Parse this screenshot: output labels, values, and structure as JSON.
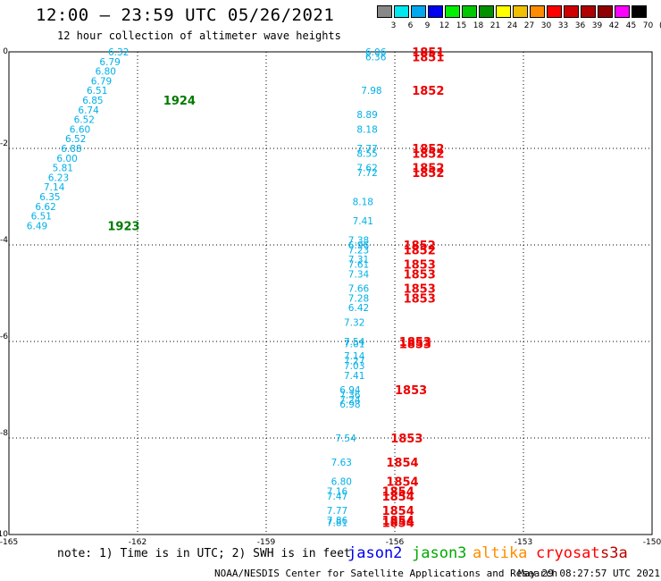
{
  "header": {
    "title": "12:00 – 23:59 UTC 05/26/2021",
    "subtitle": "12 hour collection of altimeter wave heights"
  },
  "colorbar": {
    "labels": [
      "3",
      "6",
      "9",
      "12",
      "15",
      "18",
      "21",
      "24",
      "27",
      "30",
      "33",
      "36",
      "39",
      "42",
      "45",
      "70"
    ],
    "unit": "(ft)",
    "colors": [
      "#888888",
      "#00e8f0",
      "#00a8f0",
      "#0000f0",
      "#00f000",
      "#00c800",
      "#009000",
      "#ffff00",
      "#f0c000",
      "#ff8c00",
      "#ff0000",
      "#d00000",
      "#b00000",
      "#900000",
      "#ff00ff",
      "#000000"
    ]
  },
  "chart_data": {
    "type": "scatter",
    "x_ticks": [
      "-165",
      "-162",
      "-159",
      "-156",
      "-153",
      "-150"
    ],
    "y_ticks": [
      "0",
      "-2",
      "-4",
      "-6",
      "-8",
      "-10"
    ],
    "xlim": [
      -165,
      -150
    ],
    "ylim": [
      -10,
      0
    ],
    "grid": true,
    "grid_style": "dotted",
    "swh_points": [
      {
        "x": -162.2,
        "y": 0.0,
        "label": "6.32"
      },
      {
        "x": -162.4,
        "y": -0.2,
        "label": "6.79"
      },
      {
        "x": -162.5,
        "y": -0.4,
        "label": "6.80"
      },
      {
        "x": -162.6,
        "y": -0.6,
        "label": "6.79"
      },
      {
        "x": -162.7,
        "y": -0.8,
        "label": "6.51"
      },
      {
        "x": -162.8,
        "y": -1.0,
        "label": "6.85"
      },
      {
        "x": -162.9,
        "y": -1.2,
        "label": "6.74"
      },
      {
        "x": -163.0,
        "y": -1.4,
        "label": "6.52"
      },
      {
        "x": -163.1,
        "y": -1.6,
        "label": "6.60"
      },
      {
        "x": -163.2,
        "y": -1.8,
        "label": "6.52"
      },
      {
        "x": -163.3,
        "y": -2.0,
        "label": "6.88"
      },
      {
        "x": -163.4,
        "y": -2.2,
        "label": "6.00"
      },
      {
        "x": -163.5,
        "y": -2.4,
        "label": "5.81"
      },
      {
        "x": -163.6,
        "y": -2.6,
        "label": "6.23"
      },
      {
        "x": -163.7,
        "y": -2.8,
        "label": "7.14"
      },
      {
        "x": -163.8,
        "y": -3.0,
        "label": "6.35"
      },
      {
        "x": -163.9,
        "y": -3.2,
        "label": "6.62"
      },
      {
        "x": -164.0,
        "y": -3.4,
        "label": "6.51"
      },
      {
        "x": -164.1,
        "y": -3.6,
        "label": "6.49"
      },
      {
        "x": -156.2,
        "y": 0.0,
        "label": "6.06"
      },
      {
        "x": -156.2,
        "y": -0.1,
        "label": "6.36"
      },
      {
        "x": -156.3,
        "y": -0.8,
        "label": "7.98"
      },
      {
        "x": -156.4,
        "y": -1.3,
        "label": "8.89"
      },
      {
        "x": -156.4,
        "y": -1.6,
        "label": "8.18"
      },
      {
        "x": -156.4,
        "y": -2.0,
        "label": "7.77"
      },
      {
        "x": -156.4,
        "y": -2.1,
        "label": "8.55"
      },
      {
        "x": -156.4,
        "y": -2.4,
        "label": "7.62"
      },
      {
        "x": -156.4,
        "y": -2.5,
        "label": "7.72"
      },
      {
        "x": -156.5,
        "y": -3.1,
        "label": "8.18"
      },
      {
        "x": -156.5,
        "y": -3.5,
        "label": "7.41"
      },
      {
        "x": -156.6,
        "y": -3.9,
        "label": "7.38"
      },
      {
        "x": -156.6,
        "y": -4.0,
        "label": "6.96"
      },
      {
        "x": -156.6,
        "y": -4.1,
        "label": "7.23"
      },
      {
        "x": -156.6,
        "y": -4.3,
        "label": "7.31"
      },
      {
        "x": -156.6,
        "y": -4.4,
        "label": "7.61"
      },
      {
        "x": -156.6,
        "y": -4.6,
        "label": "7.34"
      },
      {
        "x": -156.6,
        "y": -4.9,
        "label": "7.66"
      },
      {
        "x": -156.6,
        "y": -5.1,
        "label": "7.28"
      },
      {
        "x": -156.6,
        "y": -5.3,
        "label": "6.42"
      },
      {
        "x": -156.7,
        "y": -5.6,
        "label": "7.32"
      },
      {
        "x": -156.7,
        "y": -6.0,
        "label": "7.54"
      },
      {
        "x": -156.7,
        "y": -6.05,
        "label": "7.01"
      },
      {
        "x": -156.7,
        "y": -6.3,
        "label": "7.14"
      },
      {
        "x": -156.7,
        "y": -6.4,
        "label": "7.27"
      },
      {
        "x": -156.7,
        "y": -6.5,
        "label": "7.03"
      },
      {
        "x": -156.7,
        "y": -6.7,
        "label": "7.41"
      },
      {
        "x": -156.8,
        "y": -7.0,
        "label": "6.94"
      },
      {
        "x": -156.8,
        "y": -7.1,
        "label": "7.36"
      },
      {
        "x": -156.8,
        "y": -7.2,
        "label": "7.24"
      },
      {
        "x": -156.8,
        "y": -7.3,
        "label": "6.98"
      },
      {
        "x": -156.9,
        "y": -8.0,
        "label": "7.54"
      },
      {
        "x": -157.0,
        "y": -8.5,
        "label": "7.63"
      },
      {
        "x": -157.0,
        "y": -8.9,
        "label": "6.80"
      },
      {
        "x": -157.1,
        "y": -9.1,
        "label": "7.16"
      },
      {
        "x": -157.1,
        "y": -9.2,
        "label": "7.47"
      },
      {
        "x": -157.1,
        "y": -9.5,
        "label": "7.77"
      },
      {
        "x": -157.1,
        "y": -9.7,
        "label": "7.86"
      },
      {
        "x": -157.1,
        "y": -9.75,
        "label": "7.81"
      }
    ],
    "pass_labels": [
      {
        "x": -161.4,
        "y": -1.0,
        "label": "1924",
        "satellite": "jason3"
      },
      {
        "x": -162.7,
        "y": -3.6,
        "label": "1923",
        "satellite": "jason3"
      },
      {
        "x": -155.6,
        "y": 0.0,
        "label": "1851",
        "satellite": "cryosat"
      },
      {
        "x": -155.6,
        "y": -0.1,
        "label": "1851",
        "satellite": "cryosat"
      },
      {
        "x": -155.6,
        "y": -0.8,
        "label": "1852",
        "satellite": "cryosat"
      },
      {
        "x": -155.6,
        "y": -2.0,
        "label": "1852",
        "satellite": "cryosat"
      },
      {
        "x": -155.6,
        "y": -2.1,
        "label": "1852",
        "satellite": "cryosat"
      },
      {
        "x": -155.6,
        "y": -2.4,
        "label": "1852",
        "satellite": "cryosat"
      },
      {
        "x": -155.6,
        "y": -2.5,
        "label": "1852",
        "satellite": "cryosat"
      },
      {
        "x": -155.8,
        "y": -4.0,
        "label": "1852",
        "satellite": "cryosat"
      },
      {
        "x": -155.8,
        "y": -4.1,
        "label": "1852",
        "satellite": "cryosat"
      },
      {
        "x": -155.8,
        "y": -4.4,
        "label": "1853",
        "satellite": "cryosat"
      },
      {
        "x": -155.8,
        "y": -4.6,
        "label": "1853",
        "satellite": "cryosat"
      },
      {
        "x": -155.8,
        "y": -4.9,
        "label": "1853",
        "satellite": "cryosat"
      },
      {
        "x": -155.8,
        "y": -5.1,
        "label": "1853",
        "satellite": "cryosat"
      },
      {
        "x": -155.9,
        "y": -6.0,
        "label": "1853",
        "satellite": "cryosat"
      },
      {
        "x": -155.9,
        "y": -6.05,
        "label": "1853",
        "satellite": "cryosat"
      },
      {
        "x": -156.0,
        "y": -7.0,
        "label": "1853",
        "satellite": "cryosat"
      },
      {
        "x": -156.1,
        "y": -8.0,
        "label": "1853",
        "satellite": "cryosat"
      },
      {
        "x": -156.2,
        "y": -8.5,
        "label": "1854",
        "satellite": "cryosat"
      },
      {
        "x": -156.2,
        "y": -8.9,
        "label": "1854",
        "satellite": "cryosat"
      },
      {
        "x": -156.3,
        "y": -9.1,
        "label": "1854",
        "satellite": "cryosat"
      },
      {
        "x": -156.3,
        "y": -9.2,
        "label": "1854",
        "satellite": "cryosat"
      },
      {
        "x": -156.3,
        "y": -9.5,
        "label": "1854",
        "satellite": "cryosat"
      },
      {
        "x": -156.3,
        "y": -9.7,
        "label": "1854",
        "satellite": "cryosat"
      },
      {
        "x": -156.3,
        "y": -9.75,
        "label": "1854",
        "satellite": "cryosat"
      }
    ]
  },
  "legend": {
    "jason2": {
      "label": "jason2",
      "color": "#0000ee"
    },
    "jason3": {
      "label": "jason3",
      "color": "#00aa00"
    },
    "altika": {
      "label": "altika",
      "color": "#ff8c00"
    },
    "cryosat": {
      "label": "cryosat",
      "color": "#ff0000"
    },
    "s3a": {
      "label": "s3a",
      "color": "#bb0000"
    }
  },
  "colors": {
    "swh_text": "#00b0e8",
    "pass_jason3": "#007a00",
    "pass_cryosat": "#ee0000"
  },
  "footer": {
    "note": "note: 1) Time is in UTC; 2) SWH is in feet",
    "org": "NOAA/NESDIS Center for Satellite Applications and Research",
    "timestamp": "May 29 08:27:57 UTC 2021"
  }
}
